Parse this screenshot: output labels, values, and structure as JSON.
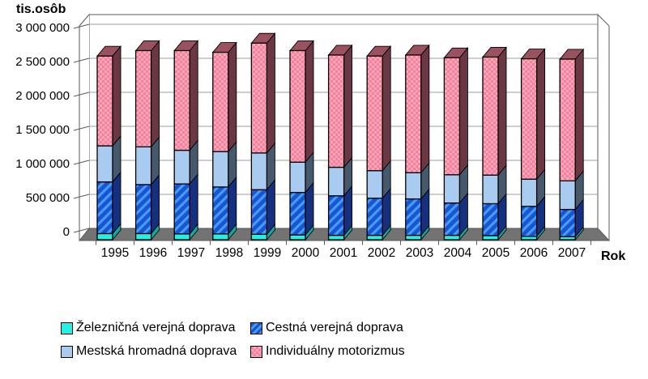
{
  "y_axis": {
    "title": "tis.osôb",
    "tick_labels": [
      "3 000 000",
      "2 500 000",
      "2 000 000",
      "1 500 000",
      "1 000 000",
      "500 000",
      "0"
    ],
    "min": 0,
    "max": 3000000,
    "step": 500000
  },
  "x_axis": {
    "title": "Rok"
  },
  "legend": {
    "items": [
      {
        "label": "Železničná verejná doprava",
        "swatch": "rail-cyan-solid"
      },
      {
        "label": "Cestná verejná doprava",
        "swatch": "road-blue-diagonal-stripes"
      },
      {
        "label": "Mestská hromadná doprava",
        "swatch": "city-lightblue-solid"
      },
      {
        "label": "Individuálny motorizmus",
        "swatch": "moto-pink-checker"
      }
    ]
  },
  "chart_data": {
    "type": "bar",
    "stacked": true,
    "unit": "tis. osôb",
    "categories": [
      "1995",
      "1996",
      "1997",
      "1998",
      "1999",
      "2000",
      "2001",
      "2002",
      "2003",
      "2004",
      "2005",
      "2006",
      "2007"
    ],
    "series": [
      {
        "name": "Železničná verejná doprava",
        "key": "rail",
        "color": "#25F0E2",
        "pattern": "solid",
        "values": [
          90000,
          90000,
          85000,
          85000,
          80000,
          70000,
          65000,
          65000,
          65000,
          65000,
          60000,
          50000,
          45000
        ]
      },
      {
        "name": "Cestná verejná doprava",
        "key": "road",
        "color": "#1C52D8",
        "pattern": "diagonal-stripes",
        "values": [
          760000,
          720000,
          735000,
          690000,
          655000,
          625000,
          580000,
          545000,
          535000,
          475000,
          470000,
          440000,
          400000
        ]
      },
      {
        "name": "Mestská hromadná doprava",
        "key": "city",
        "color": "#A9CBF0",
        "pattern": "solid",
        "values": [
          530000,
          555000,
          495000,
          520000,
          540000,
          445000,
          420000,
          405000,
          385000,
          415000,
          420000,
          400000,
          420000
        ]
      },
      {
        "name": "Individuálny motorizmus",
        "key": "moto",
        "color": "#F5809C",
        "pattern": "checker",
        "values": [
          1320000,
          1415000,
          1465000,
          1460000,
          1615000,
          1640000,
          1650000,
          1685000,
          1730000,
          1720000,
          1735000,
          1770000,
          1790000
        ]
      }
    ],
    "ylim": [
      0,
      3000000
    ],
    "grid": true,
    "legend_position": "bottom",
    "style": "3d-stacked-columns"
  }
}
